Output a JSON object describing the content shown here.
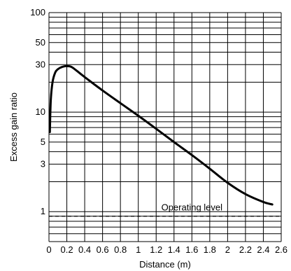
{
  "chart_data": {
    "type": "line",
    "xlabel": "Distance (m)",
    "ylabel": "Excess gain ratio",
    "xlim": [
      0,
      2.6
    ],
    "ylim": [
      0.5,
      100
    ],
    "y_scale": "log",
    "grid": true,
    "x_ticks": [
      0,
      0.2,
      0.4,
      0.6,
      0.8,
      1,
      1.2,
      1.4,
      1.6,
      1.8,
      2,
      2.2,
      2.4,
      2.6
    ],
    "x_tick_labels": [
      "0",
      "0.2",
      "0.4",
      "0.6",
      "0.8",
      "1",
      "1.2",
      "1.4",
      "1.6",
      "1.8",
      "2",
      "2.2",
      "2.4",
      "2.6"
    ],
    "y_tick_labels": [
      {
        "value": 100,
        "label": "100"
      },
      {
        "value": 50,
        "label": "50"
      },
      {
        "value": 30,
        "label": "30"
      },
      {
        "value": 10,
        "label": "10"
      },
      {
        "value": 5,
        "label": "5"
      },
      {
        "value": 3,
        "label": "3"
      },
      {
        "value": 1,
        "label": "1"
      }
    ],
    "series": [
      {
        "x": [
          0.01,
          0.02,
          0.04,
          0.07,
          0.1,
          0.15,
          0.2,
          0.25,
          0.3,
          0.4,
          0.6,
          0.8,
          1.0,
          1.2,
          1.4,
          1.6,
          1.8,
          2.0,
          2.2,
          2.4,
          2.5
        ],
        "y": [
          6.3,
          13,
          20,
          25,
          27,
          28.5,
          29,
          28.5,
          26.5,
          22.5,
          16.5,
          12.3,
          9.2,
          6.8,
          5.0,
          3.7,
          2.7,
          1.95,
          1.5,
          1.25,
          1.18
        ]
      }
    ],
    "reference_line": {
      "label": "Operating level",
      "y": 0.9,
      "style": "dashed"
    }
  }
}
